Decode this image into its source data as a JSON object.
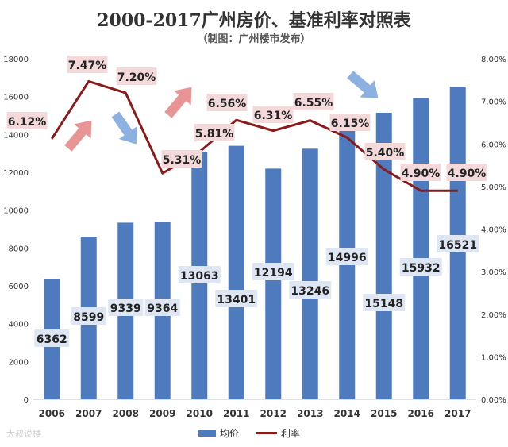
{
  "title": "2000-2017广州房价、基准利率对照表",
  "subtitle": "（制图：广州楼市发布）",
  "watermark": "大叔说楼",
  "colors": {
    "bar": "#4e7bbd",
    "line": "#8b1a1a",
    "value_box_bar": "#dde6f2",
    "value_box_rate": "#f3d9d9",
    "arrow_red": "#e88a8a",
    "arrow_blue": "#7fa7dc"
  },
  "chart_data": {
    "type": "bar",
    "title": "2000-2017广州房价、基准利率对照表",
    "categories": [
      "2006",
      "2007",
      "2008",
      "2009",
      "2010",
      "2011",
      "2012",
      "2013",
      "2014",
      "2015",
      "2016",
      "2017"
    ],
    "series": [
      {
        "name": "均价",
        "kind": "bar",
        "axis": "left",
        "values": [
          6362,
          8599,
          9339,
          9364,
          13063,
          13401,
          12194,
          13246,
          14996,
          15148,
          15932,
          16521
        ],
        "labels": [
          "6362",
          "8599",
          "9339",
          "9364",
          "13063",
          "13401",
          "12194",
          "13246",
          "14996",
          "15148",
          "15932",
          "16521"
        ]
      },
      {
        "name": "利率",
        "kind": "line",
        "axis": "right",
        "values": [
          6.12,
          7.47,
          7.2,
          5.31,
          5.81,
          6.56,
          6.31,
          6.55,
          6.15,
          5.4,
          4.9,
          4.9
        ],
        "labels": [
          "6.12%",
          "7.47%",
          "7.20%",
          "5.31%",
          "5.81%",
          "6.56%",
          "6.31%",
          "6.55%",
          "6.15%",
          "5.40%",
          "4.90%",
          "4.90%"
        ]
      }
    ],
    "y_left": {
      "min": 0,
      "max": 18000,
      "ticks": [
        "0",
        "2000",
        "4000",
        "6000",
        "8000",
        "10000",
        "12000",
        "14000",
        "16000",
        "18000"
      ]
    },
    "y_right": {
      "min": 0,
      "max": 8,
      "ticks": [
        "0.00%",
        "1.00%",
        "2.00%",
        "3.00%",
        "4.00%",
        "5.00%",
        "6.00%",
        "7.00%",
        "8.00%"
      ]
    },
    "legend": [
      "均价",
      "利率"
    ],
    "legend_position": "bottom"
  }
}
